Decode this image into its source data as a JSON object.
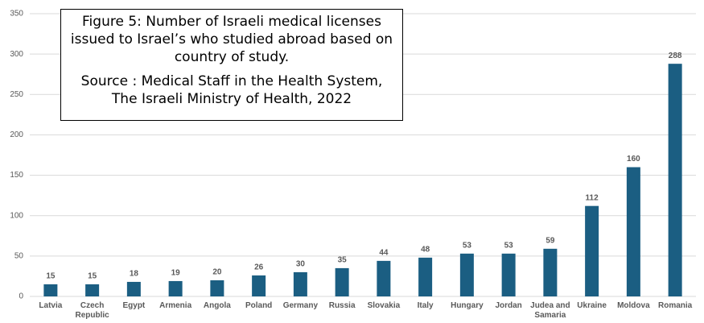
{
  "chart_data": {
    "type": "bar",
    "title": "Figure 5: Number of Israeli medical licenses issued to Israel’s who studied abroad based on country of study.",
    "subtitle": "Source  : Medical Staff in the Health System, The Israeli Ministry of Health, 2022",
    "categories": [
      "Latvia",
      "Czech Republic",
      "Egypt",
      "Armenia",
      "Angola",
      "Poland",
      "Germany",
      "Russia",
      "Slovakia",
      "Italy",
      "Hungary",
      "Jordan",
      "Judea and Samaria",
      "Ukraine",
      "Moldova",
      "Romania"
    ],
    "values": [
      15,
      15,
      18,
      19,
      20,
      26,
      30,
      35,
      44,
      48,
      53,
      53,
      59,
      112,
      160,
      288
    ],
    "color": "#1b5e82",
    "ylim": [
      0,
      350
    ],
    "yticks": [
      0,
      50,
      100,
      150,
      200,
      250,
      300,
      350
    ],
    "grid": true
  }
}
